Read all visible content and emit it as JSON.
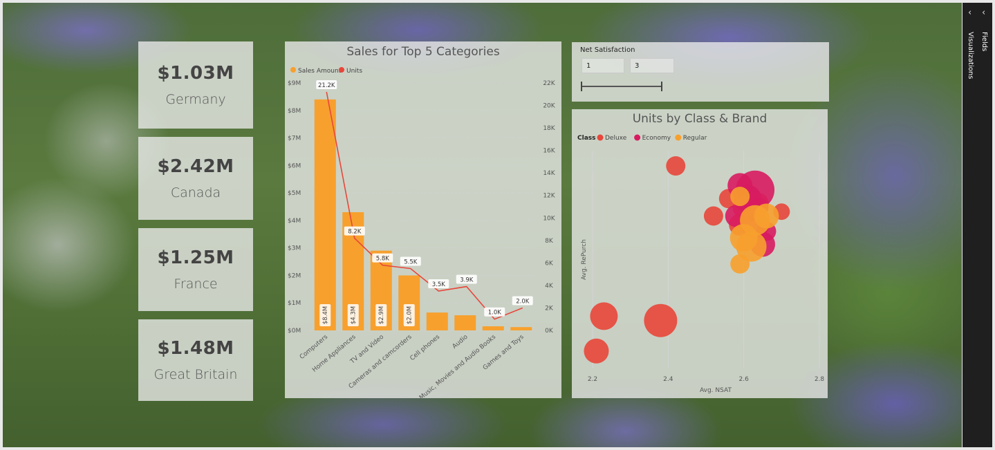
{
  "kpis": [
    {
      "value": "$1.03M",
      "label": "Germany"
    },
    {
      "value": "$2.42M",
      "label": "Canada"
    },
    {
      "value": "$1.25M",
      "label": "France"
    },
    {
      "value": "$1.48M",
      "label": "Great Britain"
    }
  ],
  "slicer": {
    "title": "Net Satisfaction",
    "min_value": "1",
    "max_value": "3"
  },
  "side_pane": {
    "visualizations_label": "Visualizations",
    "fields_label": "Fields"
  },
  "colors": {
    "sales_amount": "#f7a02e",
    "units": "#e8463a",
    "deluxe": "#e8463a",
    "economy": "#d81b60",
    "regular": "#f7a02e"
  },
  "chart_data": [
    {
      "type": "bar",
      "title": "Sales for Top 5 Categories",
      "legend_position": "top-left",
      "categories": [
        "Computers",
        "Home Appliances",
        "TV and Video",
        "Cameras and camcorders",
        "Cell phones",
        "Audio",
        "Music, Movies and Audio Books",
        "Games and Toys"
      ],
      "series": [
        {
          "name": "Sales Amount",
          "kind": "bar",
          "axis": "left",
          "values": [
            8.4,
            4.3,
            2.9,
            2.0,
            0.65,
            0.55,
            0.15,
            0.12
          ],
          "data_labels": [
            "$8.4M",
            "$4.3M",
            "$2.9M",
            "$2.0M",
            "",
            "",
            "",
            ""
          ]
        },
        {
          "name": "Units",
          "kind": "line",
          "axis": "right",
          "values": [
            21.2,
            8.2,
            5.8,
            5.5,
            3.5,
            3.9,
            1.0,
            2.0
          ],
          "data_labels": [
            "21.2K",
            "8.2K",
            "5.8K",
            "5.5K",
            "3.5K",
            "3.9K",
            "1.0K",
            "2.0K"
          ]
        }
      ],
      "y_left_ticks": [
        "$0M",
        "$1M",
        "$2M",
        "$3M",
        "$4M",
        "$5M",
        "$6M",
        "$7M",
        "$8M",
        "$9M"
      ],
      "y_left_lim": [
        0,
        9
      ],
      "y_right_ticks": [
        "0K",
        "2K",
        "4K",
        "6K",
        "8K",
        "10K",
        "12K",
        "14K",
        "16K",
        "18K",
        "20K",
        "22K"
      ],
      "y_right_lim": [
        0,
        22
      ],
      "grid": true
    },
    {
      "type": "scatter",
      "title": "Units by Class & Brand",
      "legend_title": "Class",
      "legend_position": "top-left",
      "xlabel": "Avg. NSAT",
      "ylabel": "Avg. RePurch",
      "x_ticks": [
        "2.2",
        "2.4",
        "2.6",
        "2.8"
      ],
      "xlim": [
        2.2,
        2.8
      ],
      "ylim": [
        0,
        1
      ],
      "series": [
        {
          "name": "Deluxe",
          "points": [
            {
              "x": 2.42,
              "y": 0.93,
              "size": 14
            },
            {
              "x": 2.52,
              "y": 0.7,
              "size": 14
            },
            {
              "x": 2.56,
              "y": 0.78,
              "size": 14
            },
            {
              "x": 2.59,
              "y": 0.66,
              "size": 16
            },
            {
              "x": 2.6,
              "y": 0.74,
              "size": 16
            },
            {
              "x": 2.64,
              "y": 0.76,
              "size": 14
            },
            {
              "x": 2.7,
              "y": 0.72,
              "size": 12
            },
            {
              "x": 2.23,
              "y": 0.24,
              "size": 20
            },
            {
              "x": 2.38,
              "y": 0.22,
              "size": 24
            },
            {
              "x": 2.21,
              "y": 0.08,
              "size": 18
            }
          ]
        },
        {
          "name": "Economy",
          "points": [
            {
              "x": 2.59,
              "y": 0.84,
              "size": 18
            },
            {
              "x": 2.63,
              "y": 0.82,
              "size": 28
            },
            {
              "x": 2.61,
              "y": 0.78,
              "size": 20
            },
            {
              "x": 2.58,
              "y": 0.7,
              "size": 16
            },
            {
              "x": 2.63,
              "y": 0.66,
              "size": 20
            },
            {
              "x": 2.66,
              "y": 0.63,
              "size": 14
            },
            {
              "x": 2.65,
              "y": 0.57,
              "size": 18
            },
            {
              "x": 2.62,
              "y": 0.72,
              "size": 14
            },
            {
              "x": 2.64,
              "y": 0.74,
              "size": 14
            }
          ]
        },
        {
          "name": "Regular",
          "points": [
            {
              "x": 2.59,
              "y": 0.79,
              "size": 14
            },
            {
              "x": 2.63,
              "y": 0.68,
              "size": 22
            },
            {
              "x": 2.6,
              "y": 0.6,
              "size": 20
            },
            {
              "x": 2.66,
              "y": 0.7,
              "size": 18
            },
            {
              "x": 2.62,
              "y": 0.56,
              "size": 22
            },
            {
              "x": 2.59,
              "y": 0.48,
              "size": 14
            }
          ]
        }
      ]
    }
  ]
}
